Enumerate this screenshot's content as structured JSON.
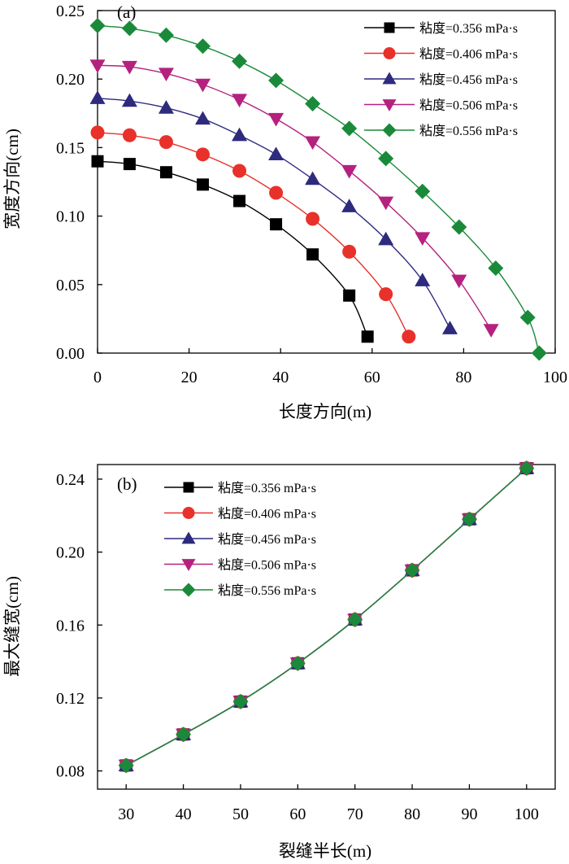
{
  "chart_data": [
    {
      "type": "line",
      "panel_label": "(a)",
      "xlabel": "长度方向(m)",
      "ylabel": "宽度方向(cm)",
      "xlim": [
        0,
        100
      ],
      "ylim": [
        0,
        0.25
      ],
      "xticks": [
        0,
        20,
        40,
        60,
        80,
        100
      ],
      "yticks": [
        0.0,
        0.05,
        0.1,
        0.15,
        0.2,
        0.25
      ],
      "xtick_labels": [
        "0",
        "20",
        "40",
        "60",
        "80",
        "100"
      ],
      "ytick_labels": [
        "0.00",
        "0.05",
        "0.10",
        "0.15",
        "0.20",
        "0.25"
      ],
      "grid": false,
      "legend_position": "top-right",
      "series": [
        {
          "name": "粘度=0.356 mPa·s",
          "color": "#000000",
          "marker": "square",
          "x": [
            0,
            7,
            15,
            23,
            31,
            39,
            47,
            55,
            59
          ],
          "y": [
            0.14,
            0.138,
            0.132,
            0.123,
            0.111,
            0.094,
            0.072,
            0.042,
            0.012
          ]
        },
        {
          "name": "粘度=0.406 mPa·s",
          "color": "#e8312a",
          "marker": "circle",
          "x": [
            0,
            7,
            15,
            23,
            31,
            39,
            47,
            55,
            63,
            68
          ],
          "y": [
            0.161,
            0.159,
            0.154,
            0.145,
            0.133,
            0.117,
            0.098,
            0.074,
            0.043,
            0.012
          ]
        },
        {
          "name": "粘度=0.456 mPa·s",
          "color": "#2e2a7e",
          "marker": "triangle-up",
          "x": [
            0,
            7,
            15,
            23,
            31,
            39,
            47,
            55,
            63,
            71,
            77
          ],
          "y": [
            0.186,
            0.184,
            0.179,
            0.171,
            0.159,
            0.145,
            0.127,
            0.107,
            0.083,
            0.053,
            0.018
          ]
        },
        {
          "name": "粘度=0.506 mPa·s",
          "color": "#b5217f",
          "marker": "triangle-down",
          "x": [
            0,
            7,
            15,
            23,
            31,
            39,
            47,
            55,
            63,
            71,
            79,
            86
          ],
          "y": [
            0.21,
            0.209,
            0.204,
            0.196,
            0.185,
            0.171,
            0.154,
            0.133,
            0.11,
            0.084,
            0.053,
            0.017
          ]
        },
        {
          "name": "粘度=0.556 mPa·s",
          "color": "#1a8a3a",
          "marker": "diamond",
          "x": [
            0,
            7,
            15,
            23,
            31,
            39,
            47,
            55,
            63,
            71,
            79,
            87,
            94,
            96.5
          ],
          "y": [
            0.239,
            0.237,
            0.232,
            0.224,
            0.213,
            0.199,
            0.182,
            0.164,
            0.142,
            0.118,
            0.092,
            0.062,
            0.026,
            0.0
          ]
        }
      ]
    },
    {
      "type": "line",
      "panel_label": "(b)",
      "xlabel": "裂缝半长(m)",
      "ylabel": "最大缝宽(cm)",
      "xlim": [
        25,
        105
      ],
      "ylim": [
        0.07,
        0.248
      ],
      "xticks": [
        30,
        40,
        50,
        60,
        70,
        80,
        90,
        100
      ],
      "yticks": [
        0.08,
        0.12,
        0.16,
        0.2,
        0.24
      ],
      "xtick_labels": [
        "30",
        "40",
        "50",
        "60",
        "70",
        "80",
        "90",
        "100"
      ],
      "ytick_labels": [
        "0.08",
        "0.12",
        "0.16",
        "0.20",
        "0.24"
      ],
      "grid": false,
      "legend_position": "top-left",
      "series": [
        {
          "name": "粘度=0.356 mPa·s",
          "color": "#000000",
          "marker": "square",
          "x": [
            30,
            40,
            50,
            60,
            70,
            80,
            90,
            100
          ],
          "y": [
            0.083,
            0.1,
            0.118,
            0.139,
            0.163,
            0.19,
            0.218,
            0.246
          ]
        },
        {
          "name": "粘度=0.406 mPa·s",
          "color": "#e8312a",
          "marker": "circle",
          "x": [
            30,
            40,
            50,
            60,
            70,
            80,
            90,
            100
          ],
          "y": [
            0.083,
            0.1,
            0.118,
            0.139,
            0.163,
            0.19,
            0.218,
            0.246
          ]
        },
        {
          "name": "粘度=0.456 mPa·s",
          "color": "#2e2a7e",
          "marker": "triangle-up",
          "x": [
            30,
            40,
            50,
            60,
            70,
            80,
            90,
            100
          ],
          "y": [
            0.083,
            0.1,
            0.118,
            0.139,
            0.163,
            0.19,
            0.218,
            0.246
          ]
        },
        {
          "name": "粘度=0.506 mPa·s",
          "color": "#b5217f",
          "marker": "triangle-down",
          "x": [
            30,
            40,
            50,
            60,
            70,
            80,
            90,
            100
          ],
          "y": [
            0.083,
            0.1,
            0.118,
            0.139,
            0.163,
            0.19,
            0.218,
            0.246
          ]
        },
        {
          "name": "粘度=0.556 mPa·s",
          "color": "#1a8a3a",
          "marker": "diamond",
          "x": [
            30,
            40,
            50,
            60,
            70,
            80,
            90,
            100
          ],
          "y": [
            0.083,
            0.1,
            0.118,
            0.139,
            0.163,
            0.19,
            0.218,
            0.246
          ]
        }
      ]
    }
  ]
}
